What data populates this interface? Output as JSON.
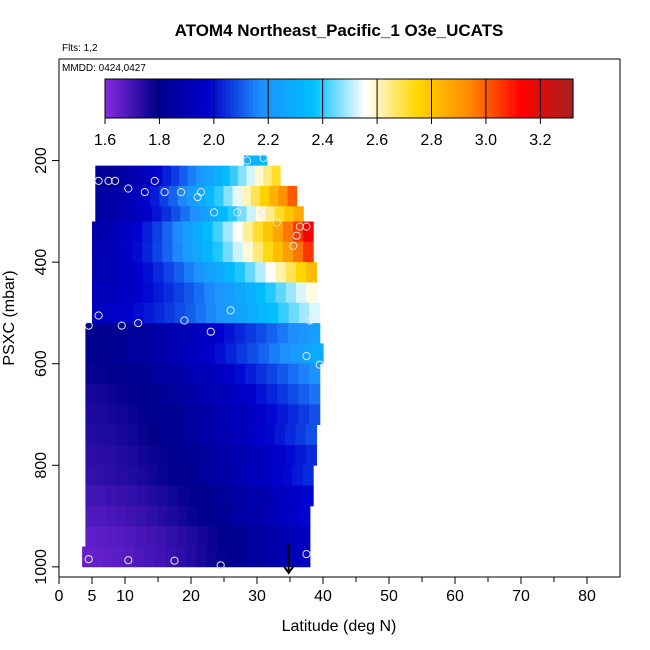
{
  "chart_data": {
    "type": "heatmap",
    "title": "ATOM4 Northeast_Pacific_1 O3e_UCATS",
    "flights_note": "Flts: 1,2",
    "date_note": "MMDD: 0424,0427",
    "xlabel": "Latitude (deg N)",
    "ylabel": "PSXC (mbar)",
    "xlim": [
      0,
      85
    ],
    "ylim": [
      1020,
      0
    ],
    "xticks": [
      0,
      5,
      10,
      20,
      30,
      40,
      50,
      60,
      70,
      80
    ],
    "xtick_labels": [
      "0",
      "5",
      "10",
      "20",
      "30",
      "40",
      "50",
      "60",
      "70",
      "80"
    ],
    "yticks": [
      200,
      400,
      600,
      800,
      1000
    ],
    "ytick_labels": [
      "200",
      "400",
      "600",
      "800",
      "1000"
    ],
    "colorbar": {
      "min": 1.6,
      "max": 3.32,
      "ticks": [
        1.6,
        1.8,
        2.0,
        2.2,
        2.4,
        2.6,
        2.8,
        3.0,
        3.2
      ],
      "tick_labels": [
        "1.6",
        "1.8",
        "2.0",
        "2.2",
        "2.4",
        "2.6",
        "2.8",
        "3.0",
        "3.2"
      ],
      "colors": [
        "#8a2be2",
        "#00008b",
        "#0000cd",
        "#1e90ff",
        "#00bfff",
        "#ffffff",
        "#ffd700",
        "#ff8c00",
        "#ff0000",
        "#a52020"
      ]
    },
    "rows": [
      {
        "p_top": 190,
        "p_bot": 210,
        "lat_min": 28,
        "lat_max": 31.5,
        "v_start": 2.3,
        "v_end": 2.35
      },
      {
        "p_top": 210,
        "p_bot": 250,
        "lat_min": 5.5,
        "lat_max": 33.5,
        "v_start": 1.82,
        "v_end": 2.75
      },
      {
        "p_top": 250,
        "p_bot": 290,
        "lat_min": 5.5,
        "lat_max": 36,
        "v_start": 1.85,
        "v_end": 3.05
      },
      {
        "p_top": 290,
        "p_bot": 320,
        "lat_min": 5.5,
        "lat_max": 37,
        "v_start": 1.86,
        "v_end": 2.9
      },
      {
        "p_top": 320,
        "p_bot": 360,
        "lat_min": 5,
        "lat_max": 38.5,
        "v_start": 1.88,
        "v_end": 3.2
      },
      {
        "p_top": 360,
        "p_bot": 400,
        "lat_min": 5,
        "lat_max": 38.5,
        "v_start": 1.9,
        "v_end": 3.1
      },
      {
        "p_top": 400,
        "p_bot": 440,
        "lat_min": 5,
        "lat_max": 39,
        "v_start": 1.9,
        "v_end": 2.85
      },
      {
        "p_top": 440,
        "p_bot": 480,
        "lat_min": 5,
        "lat_max": 39,
        "v_start": 1.92,
        "v_end": 2.6
      },
      {
        "p_top": 480,
        "p_bot": 520,
        "lat_min": 5,
        "lat_max": 39.5,
        "v_start": 1.95,
        "v_end": 2.55
      },
      {
        "p_top": 520,
        "p_bot": 560,
        "lat_min": 4,
        "lat_max": 39.5,
        "v_start": 1.8,
        "v_end": 2.25
      },
      {
        "p_top": 560,
        "p_bot": 600,
        "lat_min": 4,
        "lat_max": 40,
        "v_start": 1.8,
        "v_end": 2.3
      },
      {
        "p_top": 600,
        "p_bot": 640,
        "lat_min": 4,
        "lat_max": 39.5,
        "v_start": 1.78,
        "v_end": 2.2
      },
      {
        "p_top": 640,
        "p_bot": 680,
        "lat_min": 4,
        "lat_max": 39.5,
        "v_start": 1.76,
        "v_end": 2.15
      },
      {
        "p_top": 680,
        "p_bot": 720,
        "lat_min": 4,
        "lat_max": 39.5,
        "v_start": 1.75,
        "v_end": 2.1
      },
      {
        "p_top": 720,
        "p_bot": 760,
        "lat_min": 4,
        "lat_max": 39,
        "v_start": 1.74,
        "v_end": 2.1
      },
      {
        "p_top": 760,
        "p_bot": 800,
        "lat_min": 4,
        "lat_max": 39,
        "v_start": 1.73,
        "v_end": 2.05
      },
      {
        "p_top": 800,
        "p_bot": 840,
        "lat_min": 4,
        "lat_max": 38.5,
        "v_start": 1.72,
        "v_end": 2.05
      },
      {
        "p_top": 840,
        "p_bot": 880,
        "lat_min": 4,
        "lat_max": 38.5,
        "v_start": 1.7,
        "v_end": 2.0
      },
      {
        "p_top": 880,
        "p_bot": 920,
        "lat_min": 4,
        "lat_max": 38,
        "v_start": 1.68,
        "v_end": 2.0
      },
      {
        "p_top": 920,
        "p_bot": 960,
        "lat_min": 4,
        "lat_max": 38,
        "v_start": 1.66,
        "v_end": 1.95
      },
      {
        "p_top": 960,
        "p_bot": 1000,
        "lat_min": 3.5,
        "lat_max": 38,
        "v_start": 1.65,
        "v_end": 1.95
      }
    ],
    "points": [
      {
        "lat": 28.5,
        "p": 200
      },
      {
        "lat": 31,
        "p": 195
      },
      {
        "lat": 6,
        "p": 240
      },
      {
        "lat": 7.5,
        "p": 240
      },
      {
        "lat": 8.5,
        "p": 240
      },
      {
        "lat": 14.5,
        "p": 240
      },
      {
        "lat": 10.5,
        "p": 255
      },
      {
        "lat": 13,
        "p": 262
      },
      {
        "lat": 16,
        "p": 262
      },
      {
        "lat": 18.5,
        "p": 262
      },
      {
        "lat": 21.5,
        "p": 262
      },
      {
        "lat": 21,
        "p": 272
      },
      {
        "lat": 23.5,
        "p": 302
      },
      {
        "lat": 27,
        "p": 302
      },
      {
        "lat": 31,
        "p": 302
      },
      {
        "lat": 33,
        "p": 322
      },
      {
        "lat": 36.5,
        "p": 330
      },
      {
        "lat": 37.5,
        "p": 330
      },
      {
        "lat": 36,
        "p": 348
      },
      {
        "lat": 35.5,
        "p": 368
      },
      {
        "lat": 6,
        "p": 505
      },
      {
        "lat": 26,
        "p": 495
      },
      {
        "lat": 4.5,
        "p": 525
      },
      {
        "lat": 9.5,
        "p": 525
      },
      {
        "lat": 12,
        "p": 520
      },
      {
        "lat": 19,
        "p": 515
      },
      {
        "lat": 38,
        "p": 515
      },
      {
        "lat": 23,
        "p": 537
      },
      {
        "lat": 37.5,
        "p": 585
      },
      {
        "lat": 39.5,
        "p": 602
      },
      {
        "lat": 4.5,
        "p": 985
      },
      {
        "lat": 10.5,
        "p": 987
      },
      {
        "lat": 17.5,
        "p": 988
      },
      {
        "lat": 24.5,
        "p": 997
      },
      {
        "lat": 37.5,
        "p": 975
      }
    ],
    "arrow": {
      "lat": 34.8,
      "p_from": 955,
      "p_to": 1012
    }
  }
}
